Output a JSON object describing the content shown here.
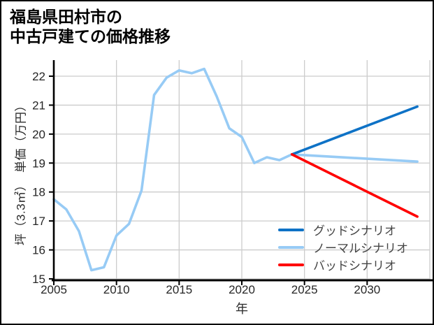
{
  "header": {
    "title_line1": "福島県田村市の",
    "title_line2": "中古戸建ての価格推移"
  },
  "chart_data": {
    "type": "line",
    "title": "福島県田村市の 中古戸建ての価格推移",
    "xlabel": "年",
    "ylabel": "坪（3.3㎡）　単価（万円）",
    "xlim": [
      2005,
      2035
    ],
    "ylim": [
      15,
      22.55
    ],
    "xticks": [
      2005,
      2010,
      2015,
      2020,
      2025,
      2030
    ],
    "yticks": [
      15,
      16,
      17,
      18,
      19,
      20,
      21,
      22
    ],
    "grid": true,
    "legend_position": "lower right",
    "colors": {
      "grid": "#cccccc",
      "axis": "#000000",
      "tick_label": "#262626",
      "good": "#0e72c6",
      "normal": "#97cbf5",
      "bad": "#ff0000"
    },
    "series": [
      {
        "name": "グッドシナリオ",
        "color": "#0e72c6",
        "x": [
          2024,
          2034
        ],
        "values": [
          19.3,
          20.95
        ]
      },
      {
        "name": "ノーマルシナリオ",
        "color": "#97cbf5",
        "x": [
          2005,
          2006,
          2007,
          2008,
          2009,
          2010,
          2011,
          2012,
          2013,
          2014,
          2015,
          2016,
          2017,
          2018,
          2019,
          2020,
          2021,
          2022,
          2023,
          2024,
          2034
        ],
        "values": [
          17.75,
          17.4,
          16.65,
          15.3,
          15.4,
          16.5,
          16.9,
          18.05,
          21.35,
          21.95,
          22.2,
          22.1,
          22.25,
          21.3,
          20.2,
          19.9,
          19.0,
          19.2,
          19.1,
          19.3,
          19.05
        ]
      },
      {
        "name": "バッドシナリオ",
        "color": "#ff0000",
        "x": [
          2024,
          2034
        ],
        "values": [
          19.3,
          17.15
        ]
      }
    ]
  }
}
